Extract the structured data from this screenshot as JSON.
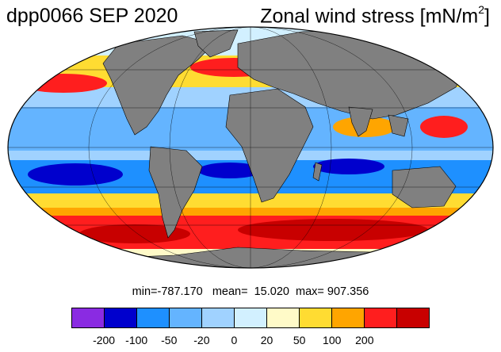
{
  "header": {
    "left_title": "dpp0066 SEP 2020",
    "right_title_main": "Zonal wind stress [mN/m",
    "right_title_sup": "2",
    "right_title_end": "]"
  },
  "stats": {
    "text": "min=-787.170   mean=  15.020  max= 907.356"
  },
  "colorbar": {
    "colors": [
      "#8a2be2",
      "#0000cd",
      "#1e90ff",
      "#64b4ff",
      "#a0d2ff",
      "#d2f0ff",
      "#fffac8",
      "#ffdc32",
      "#ffa500",
      "#ff1e1e",
      "#c80000"
    ],
    "labels": [
      "-200",
      "-100",
      "-50",
      "-20",
      "0",
      "20",
      "50",
      "100",
      "200"
    ]
  },
  "map": {
    "projection": "Mollweide",
    "land_color": "#808080",
    "ocean_palette_key": "colorbar.colors"
  }
}
